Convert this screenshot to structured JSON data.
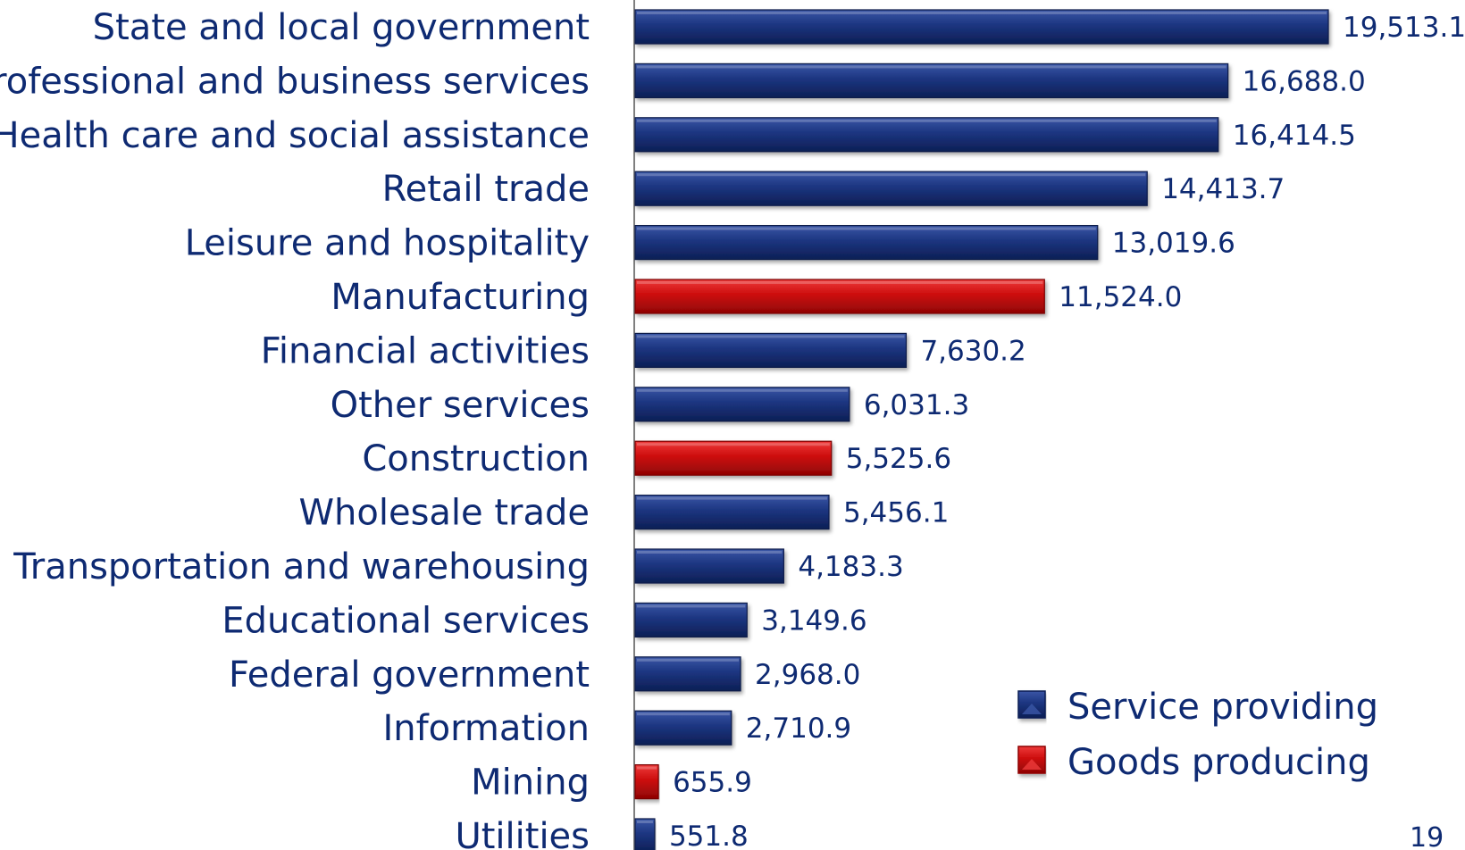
{
  "chart_data": {
    "type": "bar",
    "orientation": "horizontal",
    "categories": [
      "State and local government",
      "Professional and business services",
      "Health care and social assistance",
      "Retail trade",
      "Leisure and hospitality",
      "Manufacturing",
      "Financial activities",
      "Other services",
      "Construction",
      "Wholesale trade",
      "Transportation and warehousing",
      "Educational services",
      "Federal government",
      "Information",
      "Mining",
      "Utilities"
    ],
    "values": [
      19513.1,
      16688.0,
      16414.5,
      14413.7,
      13019.6,
      11524.0,
      7630.2,
      6031.3,
      5525.6,
      5456.1,
      4183.3,
      3149.6,
      2968.0,
      2710.9,
      655.9,
      551.8
    ],
    "value_labels": [
      "19,513.1",
      "16,688.0",
      "16,414.5",
      "14,413.7",
      "13,019.6",
      "11,524.0",
      "7,630.2",
      "6,031.3",
      "5,525.6",
      "5,456.1",
      "4,183.3",
      "3,149.6",
      "2,968.0",
      "2,710.9",
      "655.9",
      "551.8"
    ],
    "groups": [
      "service",
      "service",
      "service",
      "service",
      "service",
      "goods",
      "service",
      "service",
      "goods",
      "service",
      "service",
      "service",
      "service",
      "service",
      "goods",
      "service"
    ],
    "legend": [
      {
        "key": "service",
        "label": "Service providing",
        "color": "#1a3278"
      },
      {
        "key": "goods",
        "label": "Goods producing",
        "color": "#cc0a0a"
      }
    ],
    "legend_position": "bottom-right",
    "xlim": [
      0,
      19513.1
    ],
    "grid": false,
    "title": "",
    "xlabel": "",
    "ylabel": ""
  },
  "page_number": "19",
  "colors": {
    "service": "#1a3278",
    "goods": "#cc0a0a",
    "text": "#0e2a72",
    "axis": "#7f7f7f"
  }
}
